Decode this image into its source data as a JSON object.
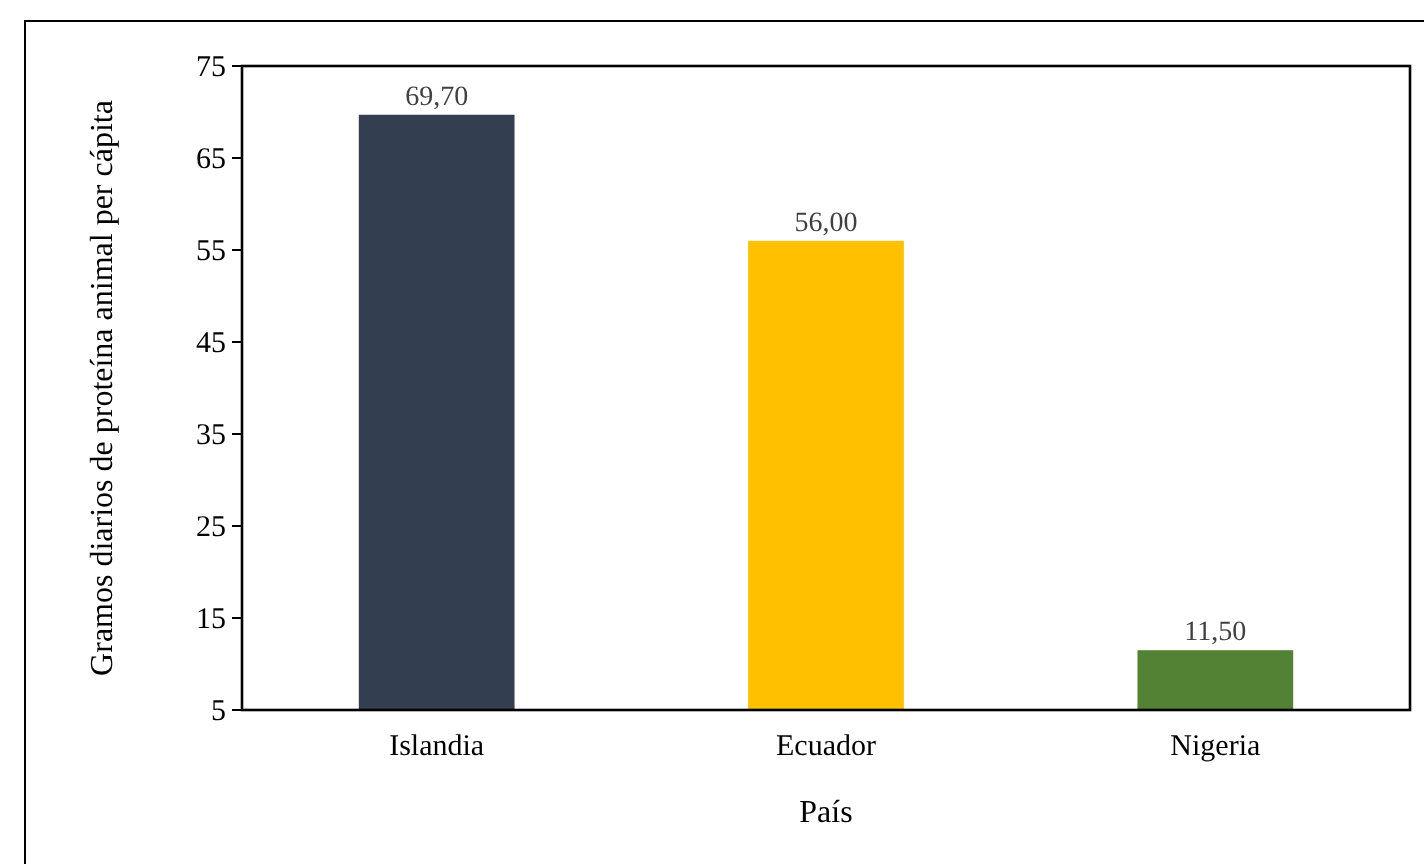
{
  "chart_data": {
    "type": "bar",
    "xlabel": "País",
    "ylabel": "Gramos diarios de proteína animal per cápita",
    "categories": [
      "Islandia",
      "Ecuador",
      "Nigeria"
    ],
    "values": [
      69.7,
      56,
      11.5
    ],
    "colors": [
      "#333f50",
      "#ffc000",
      "#548235"
    ],
    "value_labels": [
      "69,70",
      "56,00",
      "11,50"
    ],
    "ylim": [
      5,
      75
    ],
    "yticks": [
      5,
      15,
      25,
      35,
      45,
      55,
      65,
      75
    ],
    "grid": false
  }
}
